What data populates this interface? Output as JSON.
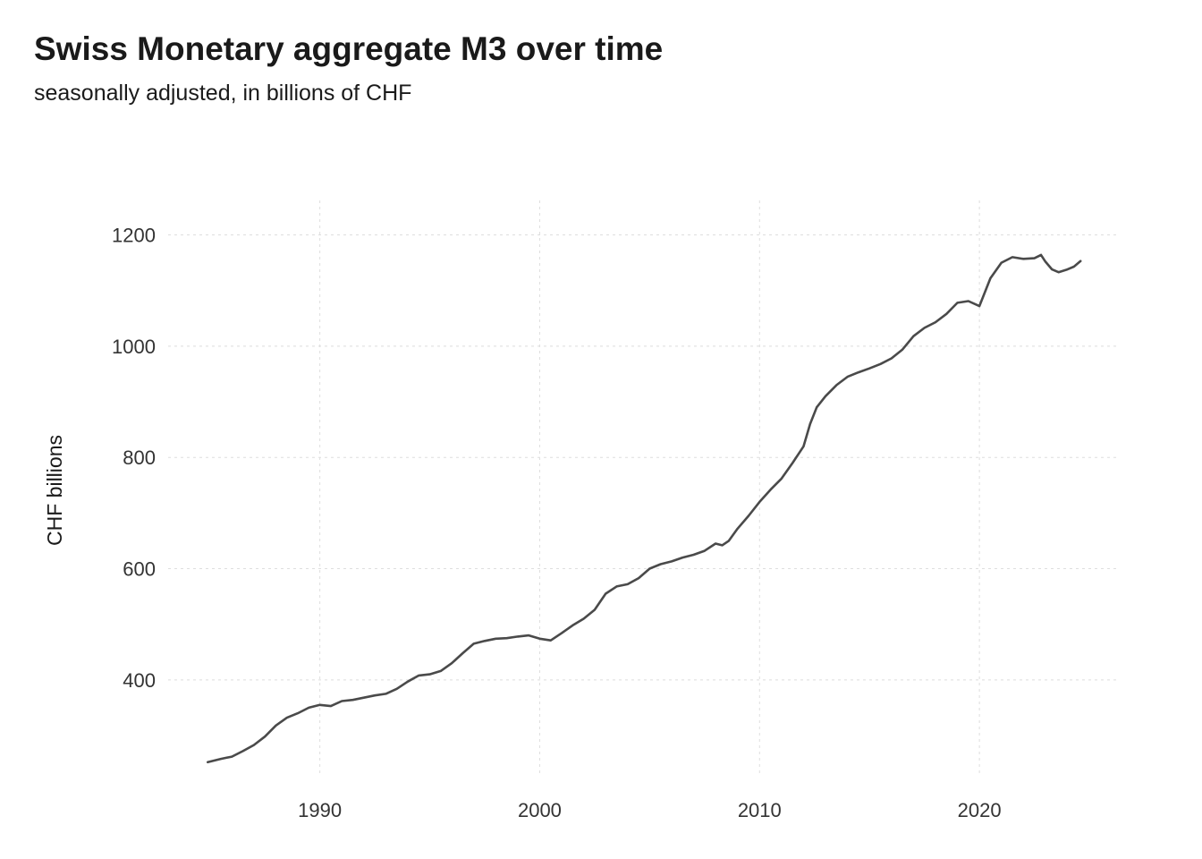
{
  "chart_data": {
    "type": "line",
    "title": "Swiss Monetary aggregate M3 over time",
    "subtitle": "seasonally adjusted, in billions of CHF",
    "xlabel": "",
    "ylabel": "CHF billions",
    "xlim": [
      1983.1,
      2026.3
    ],
    "ylim": [
      226,
      1262
    ],
    "x_ticks": [
      1990,
      2000,
      2010,
      2020
    ],
    "y_ticks": [
      400,
      600,
      800,
      1000,
      1200
    ],
    "grid": true,
    "line_color": "#4a4a4a",
    "series": [
      {
        "x": [
          1984.9,
          1985.5,
          1986.0,
          1986.5,
          1987.0,
          1987.5,
          1988.0,
          1988.5,
          1989.0,
          1989.5,
          1990.0,
          1990.5,
          1991.0,
          1991.5,
          1992.0,
          1992.5,
          1993.0,
          1993.5,
          1994.0,
          1994.5,
          1995.0,
          1995.5,
          1996.0,
          1996.5,
          1997.0,
          1997.5,
          1998.0,
          1998.5,
          1999.0,
          1999.5,
          2000.0,
          2000.5,
          2001.0,
          2001.5,
          2002.0,
          2002.5,
          2003.0,
          2003.5,
          2004.0,
          2004.5,
          2005.0,
          2005.5,
          2006.0,
          2006.5,
          2007.0,
          2007.5,
          2008.0,
          2008.3,
          2008.6,
          2009.0,
          2009.5,
          2010.0,
          2010.5,
          2011.0,
          2011.5,
          2012.0,
          2012.3,
          2012.6,
          2013.0,
          2013.5,
          2014.0,
          2014.5,
          2015.0,
          2015.5,
          2016.0,
          2016.5,
          2017.0,
          2017.5,
          2018.0,
          2018.5,
          2019.0,
          2019.5,
          2020.0,
          2020.5,
          2021.0,
          2021.5,
          2022.0,
          2022.5,
          2022.8,
          2023.0,
          2023.3,
          2023.6,
          2024.0,
          2024.3,
          2024.6
        ],
        "values": [
          252,
          258,
          262,
          272,
          283,
          298,
          318,
          332,
          340,
          350,
          355,
          353,
          362,
          364,
          368,
          372,
          375,
          384,
          397,
          408,
          410,
          416,
          430,
          448,
          465,
          470,
          474,
          475,
          478,
          480,
          474,
          471,
          484,
          498,
          510,
          526,
          555,
          568,
          572,
          583,
          600,
          608,
          613,
          620,
          625,
          632,
          645,
          642,
          650,
          672,
          695,
          720,
          742,
          762,
          790,
          820,
          860,
          890,
          910,
          930,
          945,
          953,
          960,
          968,
          978,
          994,
          1018,
          1033,
          1043,
          1058,
          1078,
          1081,
          1072,
          1122,
          1150,
          1160,
          1157,
          1158,
          1164,
          1152,
          1138,
          1133,
          1138,
          1143,
          1153
        ]
      }
    ]
  }
}
